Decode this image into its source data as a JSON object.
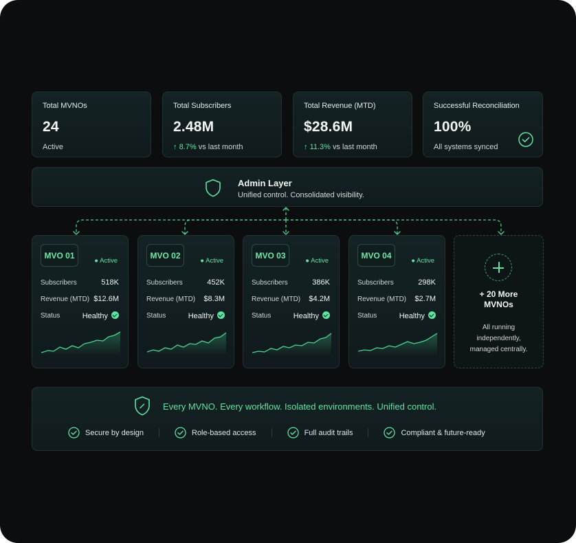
{
  "stats": [
    {
      "label": "Total MVNOs",
      "value": "24",
      "sub": "Active"
    },
    {
      "label": "Total Subscribers",
      "value": "2.48M",
      "trend_arrow": "↑",
      "trend": "8.7%",
      "sub": "vs last month"
    },
    {
      "label": "Total Revenue (MTD)",
      "value": "$28.6M",
      "trend_arrow": "↑",
      "trend": "11.3%",
      "sub": "vs last month"
    },
    {
      "label": "Successful Reconciliation",
      "value": "100%",
      "sub": "All systems synced",
      "icon": "check-circle-icon"
    }
  ],
  "admin": {
    "title": "Admin Layer",
    "subtitle": "Unified control. Consolidated visibility.",
    "icon": "shield-icon"
  },
  "mvos": [
    {
      "name": "MVO 01",
      "status_badge": "Active",
      "subscribers_label": "Subscribers",
      "subscribers": "518K",
      "revenue_label": "Revenue (MTD)",
      "revenue": "$12.6M",
      "status_label": "Status",
      "status": "Healthy"
    },
    {
      "name": "MVO 02",
      "status_badge": "Active",
      "subscribers_label": "Subscribers",
      "subscribers": "452K",
      "revenue_label": "Revenue (MTD)",
      "revenue": "$8.3M",
      "status_label": "Status",
      "status": "Healthy"
    },
    {
      "name": "MVO 03",
      "status_badge": "Active",
      "subscribers_label": "Subscribers",
      "subscribers": "386K",
      "revenue_label": "Revenue (MTD)",
      "revenue": "$4.2M",
      "status_label": "Status",
      "status": "Healthy"
    },
    {
      "name": "MVO 04",
      "status_badge": "Active",
      "subscribers_label": "Subscribers",
      "subscribers": "298K",
      "revenue_label": "Revenue (MTD)",
      "revenue": "$2.7M",
      "status_label": "Status",
      "status": "Healthy"
    }
  ],
  "more": {
    "title": "+ 20 More MVNOs",
    "description": "All running independently, managed centrally.",
    "icon": "plus-icon"
  },
  "footer": {
    "headline": "Every MVNO. Every workflow. Isolated environments. Unified control.",
    "icon": "shield-check-icon",
    "features": [
      "Secure by design",
      "Role-based access",
      "Full audit trails",
      "Compliant & future-ready"
    ]
  },
  "colors": {
    "background": "#0b0d0f",
    "card": "#142224",
    "accent": "#5fe3a1",
    "border": "#1f3336"
  }
}
